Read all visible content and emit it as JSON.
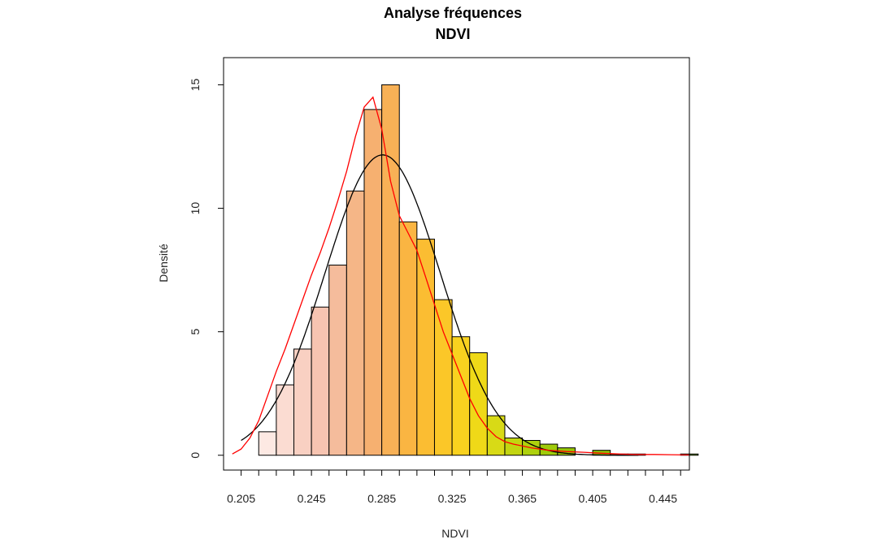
{
  "chart_data": {
    "type": "bar",
    "title": "Analyse fréquences",
    "subtitle": "NDVI",
    "xlabel": "NDVI",
    "ylabel": "Densité",
    "xlim": [
      0.195,
      0.46
    ],
    "ylim": [
      -0.6,
      16.1
    ],
    "x_ticks": [
      0.205,
      0.215,
      0.225,
      0.235,
      0.245,
      0.255,
      0.265,
      0.275,
      0.285,
      0.295,
      0.305,
      0.315,
      0.325,
      0.335,
      0.345,
      0.355,
      0.365,
      0.375,
      0.385,
      0.395,
      0.405,
      0.415,
      0.425,
      0.435,
      0.445,
      0.455
    ],
    "x_tick_labels": [
      "0.205",
      "0.245",
      "0.285",
      "0.325",
      "0.365",
      "0.405",
      "0.445"
    ],
    "y_ticks": [
      0,
      5,
      10,
      15
    ],
    "y_tick_labels": [
      "0",
      "5",
      "10",
      "15"
    ],
    "bin_width": 0.01,
    "bins": [
      {
        "start": 0.205,
        "value": 0.0
      },
      {
        "start": 0.215,
        "value": 0.95,
        "color": "#fde9e3"
      },
      {
        "start": 0.225,
        "value": 2.85,
        "color": "#fbdcd2"
      },
      {
        "start": 0.235,
        "value": 4.3,
        "color": "#f9d0c2"
      },
      {
        "start": 0.245,
        "value": 6.0,
        "color": "#f7c4b1"
      },
      {
        "start": 0.255,
        "value": 7.7,
        "color": "#f5bc9c"
      },
      {
        "start": 0.265,
        "value": 10.7,
        "color": "#f5b687"
      },
      {
        "start": 0.275,
        "value": 14.0,
        "color": "#f6b070"
      },
      {
        "start": 0.285,
        "value": 15.0,
        "color": "#f8b156"
      },
      {
        "start": 0.295,
        "value": 9.45,
        "color": "#fab542"
      },
      {
        "start": 0.305,
        "value": 8.75,
        "color": "#fbbd32"
      },
      {
        "start": 0.315,
        "value": 6.3,
        "color": "#fbc728"
      },
      {
        "start": 0.325,
        "value": 4.8,
        "color": "#f9d21f"
      },
      {
        "start": 0.335,
        "value": 4.15,
        "color": "#efd918"
      },
      {
        "start": 0.345,
        "value": 1.6,
        "color": "#d8da16"
      },
      {
        "start": 0.355,
        "value": 0.7,
        "color": "#c2d511"
      },
      {
        "start": 0.365,
        "value": 0.6,
        "color": "#aed10d"
      },
      {
        "start": 0.375,
        "value": 0.45,
        "color": "#9fcb0a"
      },
      {
        "start": 0.385,
        "value": 0.3,
        "color": "#97c607"
      },
      {
        "start": 0.395,
        "value": 0.0
      },
      {
        "start": 0.405,
        "value": 0.2,
        "color": "#8dc005"
      },
      {
        "start": 0.415,
        "value": 0.05,
        "color": "#88bd04"
      },
      {
        "start": 0.425,
        "value": 0.05,
        "color": "#84ba03"
      },
      {
        "start": 0.435,
        "value": 0.0
      },
      {
        "start": 0.445,
        "value": 0.0
      },
      {
        "start": 0.455,
        "value": 0.05,
        "color": "#7fb602"
      }
    ],
    "normal_curve": {
      "color": "#000000",
      "mean": 0.2855,
      "sd": 0.0328
    },
    "density_curve": {
      "color": "#ff0000",
      "x": [
        0.2,
        0.205,
        0.21,
        0.215,
        0.22,
        0.225,
        0.23,
        0.235,
        0.24,
        0.245,
        0.25,
        0.255,
        0.26,
        0.265,
        0.27,
        0.275,
        0.28,
        0.285,
        0.29,
        0.295,
        0.3,
        0.305,
        0.31,
        0.315,
        0.32,
        0.325,
        0.33,
        0.335,
        0.34,
        0.345,
        0.35,
        0.355,
        0.36,
        0.37,
        0.38,
        0.39,
        0.4,
        0.41,
        0.42,
        0.43,
        0.44,
        0.45,
        0.46
      ],
      "y": [
        0.05,
        0.25,
        0.7,
        1.4,
        2.4,
        3.4,
        4.3,
        5.3,
        6.3,
        7.3,
        8.2,
        9.2,
        10.3,
        11.5,
        12.9,
        14.1,
        14.5,
        13.2,
        11.1,
        9.7,
        9.0,
        8.3,
        7.2,
        6.1,
        5.0,
        4.1,
        3.2,
        2.3,
        1.6,
        1.1,
        0.75,
        0.55,
        0.45,
        0.3,
        0.2,
        0.15,
        0.12,
        0.08,
        0.05,
        0.03,
        0.03,
        0.02,
        0.01
      ]
    }
  }
}
